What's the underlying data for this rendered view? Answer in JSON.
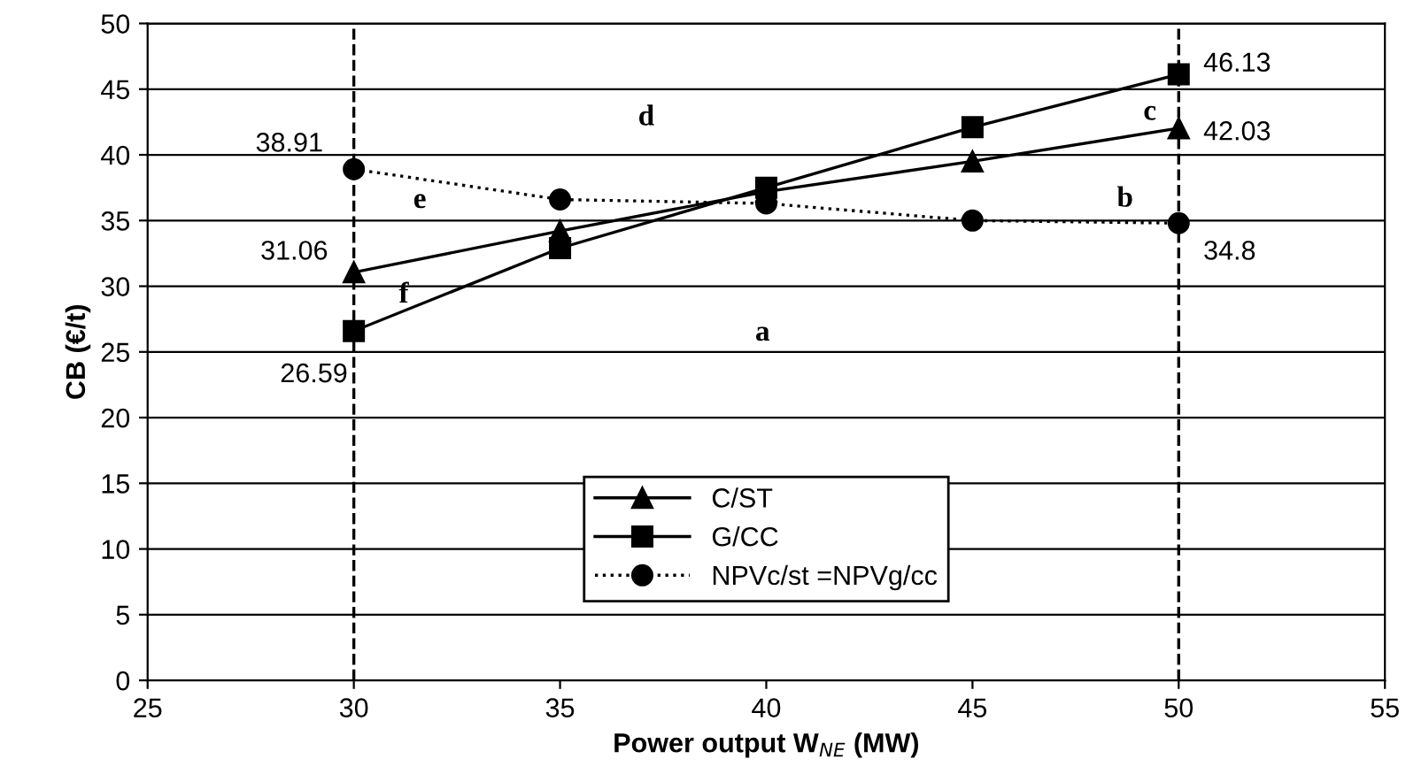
{
  "chart_data": {
    "type": "line",
    "xlabel": "Power output W$_{NE}$ (MW)",
    "ylabel": "CB (€/t)",
    "x": [
      30,
      35,
      40,
      45,
      50
    ],
    "series": [
      {
        "name": "C/ST",
        "color": "#000000",
        "marker": "triangle",
        "line_style": "solid",
        "values": [
          31.06,
          34.2,
          37.2,
          39.5,
          42.03
        ],
        "value_labels": [
          "31.06",
          null,
          null,
          null,
          "42.03"
        ]
      },
      {
        "name": "G/CC",
        "color": "#000000",
        "marker": "square",
        "line_style": "solid",
        "values": [
          26.59,
          32.9,
          37.5,
          42.1,
          46.13
        ],
        "value_labels": [
          "26.59",
          null,
          null,
          null,
          "46.13"
        ]
      },
      {
        "name": "NPVc/st =NPVg/cc",
        "color": "#000000",
        "marker": "circle",
        "line_style": "dotted",
        "values": [
          38.91,
          36.6,
          36.3,
          35.0,
          34.8
        ],
        "value_labels": [
          "38.91",
          null,
          null,
          null,
          "34.8"
        ]
      }
    ],
    "xlim": [
      25,
      55
    ],
    "xticks": [
      25,
      30,
      35,
      40,
      45,
      50,
      55
    ],
    "ylim": [
      0,
      50
    ],
    "yticks": [
      0,
      5,
      10,
      15,
      20,
      25,
      30,
      35,
      40,
      45,
      50
    ],
    "grid": "y",
    "legend": "bottom",
    "ref_lines": [
      {
        "axis": "x",
        "value": 30,
        "line_style": "dashed",
        "color": "#000000"
      },
      {
        "axis": "x",
        "value": 50,
        "line_style": "dashed",
        "color": "#000000"
      }
    ],
    "annotations": [
      "a",
      "b",
      "c",
      "d",
      "e",
      "f"
    ]
  }
}
